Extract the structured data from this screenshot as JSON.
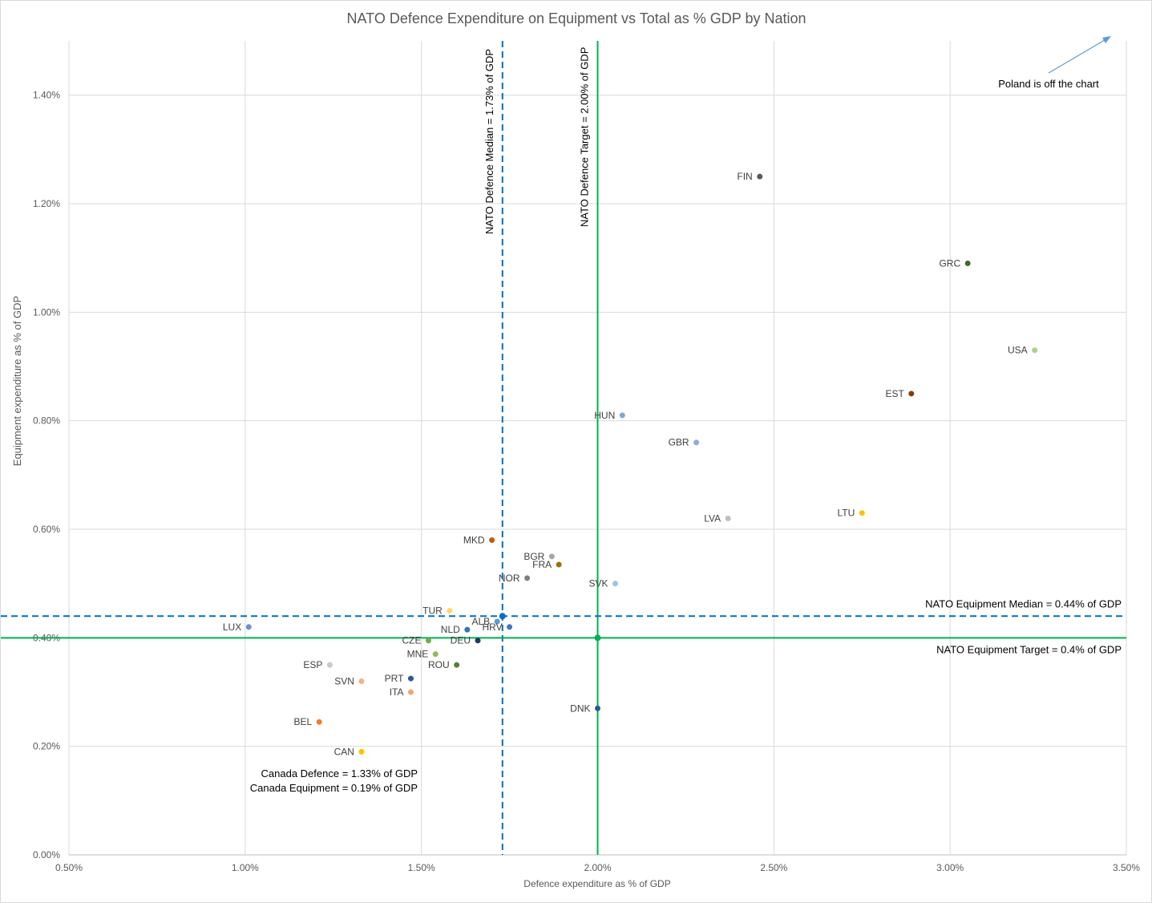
{
  "chart_data": {
    "type": "scatter",
    "title": "NATO Defence Expenditure on Equipment vs Total as % GDP by Nation",
    "xlabel": "Defence  expenditure  as % of GDP",
    "ylabel": "Equipment expenditure  as % of GDP",
    "xlim": [
      0.5,
      3.5
    ],
    "ylim": [
      0,
      1.5
    ],
    "x_ticks": [
      0.5,
      1.0,
      1.5,
      2.0,
      2.5,
      3.0,
      3.5
    ],
    "x_tick_labels": [
      "0.50%",
      "1.00%",
      "1.50%",
      "2.00%",
      "2.50%",
      "3.00%",
      "3.50%"
    ],
    "y_ticks": [
      0,
      0.2,
      0.4,
      0.6,
      0.8,
      1.0,
      1.2,
      1.4
    ],
    "y_tick_labels": [
      "0.00%",
      "0.20%",
      "0.40%",
      "0.60%",
      "0.80%",
      "1.00%",
      "1.20%",
      "1.40%"
    ],
    "grid": true,
    "points": [
      {
        "label": "FIN",
        "x": 2.46,
        "y": 1.25,
        "color": "#595959"
      },
      {
        "label": "GRC",
        "x": 3.05,
        "y": 1.09,
        "color": "#43682b"
      },
      {
        "label": "USA",
        "x": 3.24,
        "y": 0.93,
        "color": "#a9d18e"
      },
      {
        "label": "EST",
        "x": 2.89,
        "y": 0.85,
        "color": "#843c0c"
      },
      {
        "label": "HUN",
        "x": 2.07,
        "y": 0.81,
        "color": "#7fa7dc"
      },
      {
        "label": "GBR",
        "x": 2.28,
        "y": 0.76,
        "color": "#8faadc"
      },
      {
        "label": "LTU",
        "x": 2.75,
        "y": 0.63,
        "color": "#ffc000"
      },
      {
        "label": "LVA",
        "x": 2.37,
        "y": 0.62,
        "color": "#bfbfbf"
      },
      {
        "label": "MKD",
        "x": 1.7,
        "y": 0.58,
        "color": "#c55a11"
      },
      {
        "label": "BGR",
        "x": 1.87,
        "y": 0.55,
        "color": "#a5a5a5"
      },
      {
        "label": "FRA",
        "x": 1.89,
        "y": 0.535,
        "color": "#997300"
      },
      {
        "label": "NOR",
        "x": 1.8,
        "y": 0.51,
        "color": "#7f7f7f"
      },
      {
        "label": "SVK",
        "x": 2.05,
        "y": 0.5,
        "color": "#9dc3e6"
      },
      {
        "label": "TUR",
        "x": 1.58,
        "y": 0.45,
        "color": "#ffd966"
      },
      {
        "label": "ALB",
        "x": 1.715,
        "y": 0.43,
        "color": "#5b9bd5"
      },
      {
        "label": "HRV",
        "x": 1.75,
        "y": 0.42,
        "color": "#4472c4"
      },
      {
        "label": "NLD",
        "x": 1.63,
        "y": 0.415,
        "color": "#2e75b6"
      },
      {
        "label": "LUX",
        "x": 1.01,
        "y": 0.42,
        "color": "#6f8fcf"
      },
      {
        "label": "CZE",
        "x": 1.52,
        "y": 0.395,
        "color": "#70ad47"
      },
      {
        "label": "DEU",
        "x": 1.66,
        "y": 0.395,
        "color": "#203864"
      },
      {
        "label": "MNE",
        "x": 1.54,
        "y": 0.37,
        "color": "#8fbc5a"
      },
      {
        "label": "ROU",
        "x": 1.6,
        "y": 0.35,
        "color": "#548235"
      },
      {
        "label": "ESP",
        "x": 1.24,
        "y": 0.35,
        "color": "#c9c9c9"
      },
      {
        "label": "SVN",
        "x": 1.33,
        "y": 0.32,
        "color": "#f4b183"
      },
      {
        "label": "PRT",
        "x": 1.47,
        "y": 0.325,
        "color": "#2f5597"
      },
      {
        "label": "ITA",
        "x": 1.47,
        "y": 0.3,
        "color": "#f4a46a"
      },
      {
        "label": "DNK",
        "x": 2.0,
        "y": 0.27,
        "color": "#2f5597"
      },
      {
        "label": "BEL",
        "x": 1.21,
        "y": 0.245,
        "color": "#ed7d31"
      },
      {
        "label": "CAN",
        "x": 1.33,
        "y": 0.19,
        "color": "#ffc000"
      }
    ],
    "reference_lines": [
      {
        "orientation": "vertical",
        "value": 1.73,
        "style": "dashed",
        "color": "#0070c0",
        "label": "NATO Defence Median = 1.73% of GDP"
      },
      {
        "orientation": "vertical",
        "value": 2.0,
        "style": "solid",
        "color": "#00b050",
        "label": "NATO Defence Target = 2.00% of GDP"
      },
      {
        "orientation": "horizontal",
        "value": 0.44,
        "style": "dashed",
        "color": "#0070c0",
        "label": "NATO Equipment Median = 0.44% of GDP"
      },
      {
        "orientation": "horizontal",
        "value": 0.4,
        "style": "solid",
        "color": "#00b050",
        "label": "NATO Equipment Target = 0.4% of GDP"
      }
    ],
    "annotations": {
      "poland": "Poland is off the chart",
      "canada_defence": "Canada Defence = 1.33% of GDP",
      "canada_equipment": "Canada Equipment = 0.19% of GDP"
    },
    "arrow_color": "#5b9bd5"
  }
}
